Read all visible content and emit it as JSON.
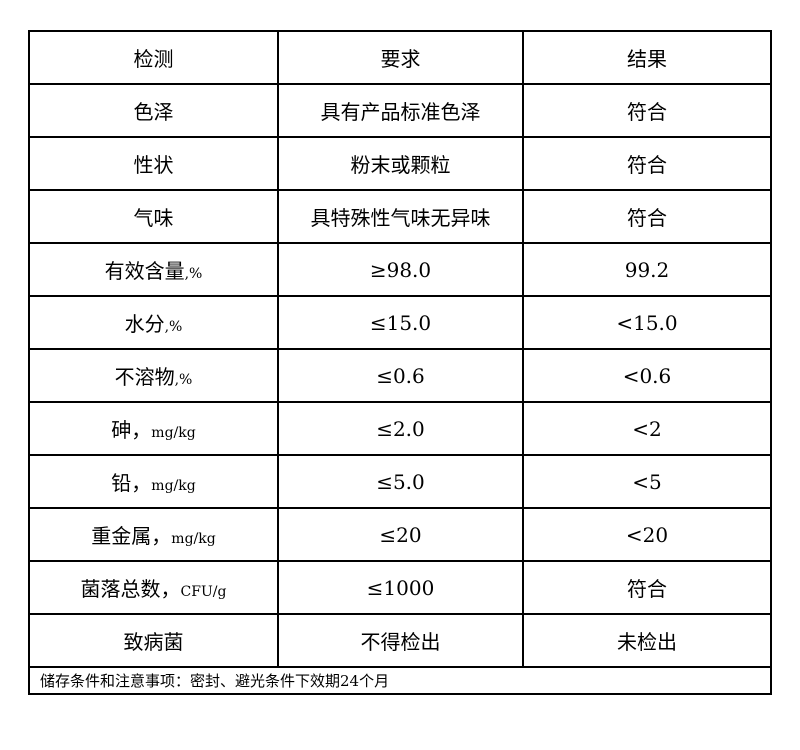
{
  "headers": [
    "检测",
    "要求",
    "结果"
  ],
  "rows": [
    {
      "item": "色泽",
      "unit": "",
      "requirement": "具有产品标准色泽",
      "result": "符合"
    },
    {
      "item": "性状",
      "unit": "",
      "requirement": "粉末或颗粒",
      "result": "符合"
    },
    {
      "item": "气味",
      "unit": "",
      "requirement": "具特殊性气味无异味",
      "result": "符合"
    },
    {
      "item": "有效含量",
      "unit": ",%",
      "requirement": "≥98.0",
      "result": "99.2"
    },
    {
      "item": "水分",
      "unit": ",%",
      "requirement": "≤15.0",
      "result": "<15.0"
    },
    {
      "item": "不溶物",
      "unit": ",%",
      "requirement": "≤0.6",
      "result": "<0.6"
    },
    {
      "item": "砷，",
      "unit": "mg/kg",
      "requirement": "≤2.0",
      "result": "<2"
    },
    {
      "item": "铅，",
      "unit": "mg/kg",
      "requirement": "≤5.0",
      "result": "<5"
    },
    {
      "item": "重金属，",
      "unit": "mg/kg",
      "requirement": "≤20",
      "result": "<20"
    },
    {
      "item": "菌落总数，",
      "unit": "CFU/g",
      "requirement": "≤1000",
      "result": "符合"
    },
    {
      "item": "致病菌",
      "unit": "",
      "requirement": "不得检出",
      "result": "未检出"
    }
  ],
  "footer": "储存条件和注意事项：密封、避光条件下效期24个月"
}
